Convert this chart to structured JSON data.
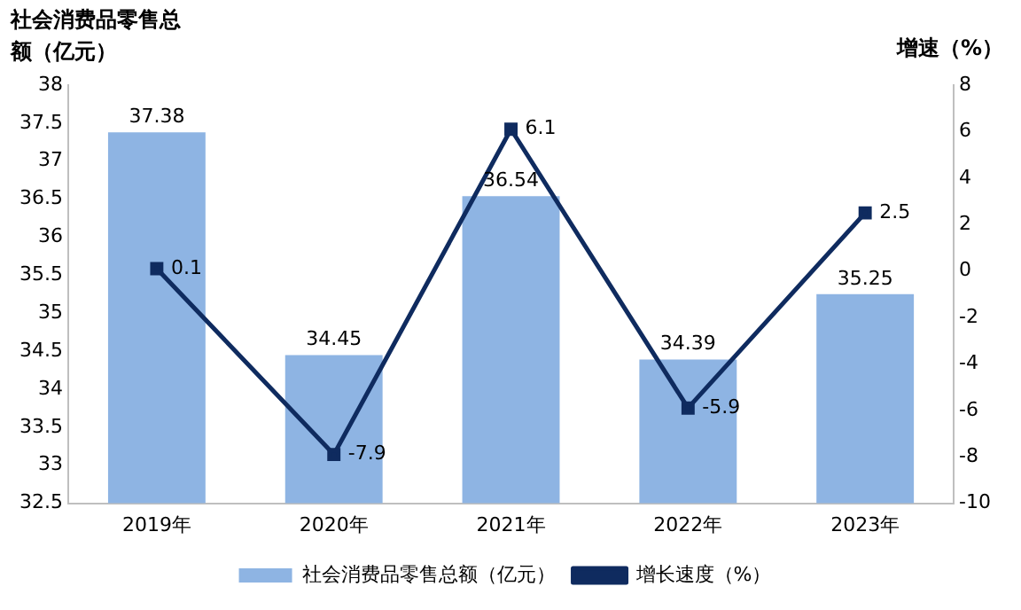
{
  "chart_data": {
    "type": "bar",
    "ylabel": "社会消费品零售总额（亿元）",
    "y2label": "增速（%）",
    "categories": [
      "2019年",
      "2020年",
      "2021年",
      "2022年",
      "2023年"
    ],
    "series": [
      {
        "name": "社会消费品零售总额（亿元）",
        "color": "#8eb4e3",
        "values": [
          37.38,
          34.45,
          36.54,
          34.39,
          35.25
        ]
      },
      {
        "name": "增长速度（%）",
        "type": "line",
        "axis": "y2",
        "color": "#0f2b5f",
        "marker": "square",
        "values": [
          0.1,
          -7.9,
          6.1,
          -5.9,
          2.5
        ]
      }
    ],
    "ylim": [
      32.5,
      38
    ],
    "yticks": [
      32.5,
      33,
      33.5,
      34,
      34.5,
      35,
      35.5,
      36,
      36.5,
      37,
      37.5,
      38
    ],
    "y2lim": [
      -10,
      8
    ],
    "y2ticks": [
      -10,
      -8,
      -6,
      -4,
      -2,
      0,
      2,
      4,
      6,
      8
    ],
    "grid": false,
    "legend": "bottom",
    "data_labels": true
  }
}
